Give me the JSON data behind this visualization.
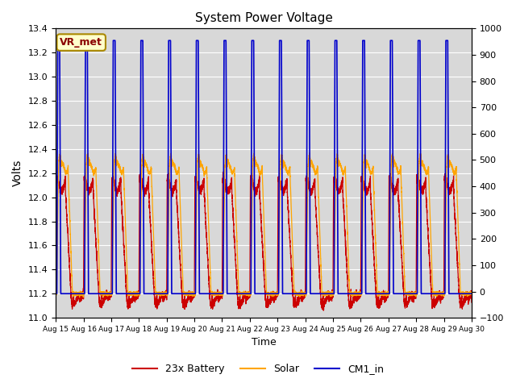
{
  "title": "System Power Voltage",
  "xlabel": "Time",
  "ylabel": "Volts",
  "ylim_left": [
    11.0,
    13.4
  ],
  "ylim_right": [
    -100,
    1000
  ],
  "yticks_left": [
    11.0,
    11.2,
    11.4,
    11.6,
    11.8,
    12.0,
    12.2,
    12.4,
    12.6,
    12.8,
    13.0,
    13.2,
    13.4
  ],
  "yticks_right": [
    -100,
    0,
    100,
    200,
    300,
    400,
    500,
    600,
    700,
    800,
    900,
    1000
  ],
  "xtick_labels": [
    "Aug 15",
    "Aug 16",
    "Aug 17",
    "Aug 18",
    "Aug 19",
    "Aug 20",
    "Aug 21",
    "Aug 22",
    "Aug 23",
    "Aug 24",
    "Aug 25",
    "Aug 26",
    "Aug 27",
    "Aug 28",
    "Aug 29",
    "Aug 30"
  ],
  "background_color": "#d8d8d8",
  "line_colors": {
    "battery": "#cc0000",
    "solar": "#ffa500",
    "cm1": "#0000cc"
  },
  "legend_labels": [
    "23x Battery",
    "Solar",
    "CM1_in"
  ],
  "annotation_text": "VR_met",
  "annotation_fg": "#8b0000",
  "annotation_bg": "#ffffcc",
  "annotation_edge": "#aa8800",
  "n_days": 15,
  "points_per_day": 480
}
